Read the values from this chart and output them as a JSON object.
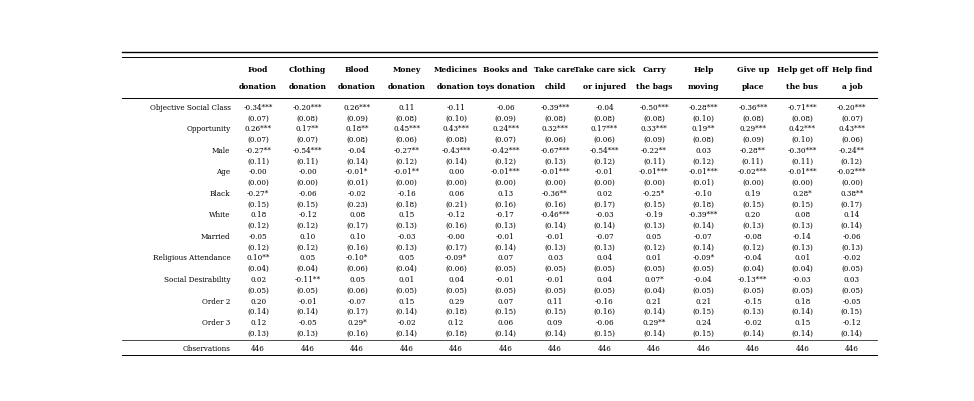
{
  "col_headers_line1": [
    "Food",
    "Clothing",
    "Blood",
    "Money",
    "Medicines",
    "Books and",
    "Take care",
    "Take care sick",
    "Carry",
    "Help",
    "Give up",
    "Help get off",
    "Help find"
  ],
  "col_headers_line2": [
    "donation",
    "donation",
    "donation",
    "donation",
    "donation",
    "toys donation",
    "child",
    "or injured",
    "the bags",
    "moving",
    "place",
    "the bus",
    "a job"
  ],
  "var_labels": [
    "Objective Social Class",
    "Opportunity",
    "Male",
    "Age",
    "Black",
    "White",
    "Married",
    "Religious Attendance",
    "Social Desirability",
    "Order 2",
    "Order 3"
  ],
  "data": [
    [
      "-0.34***",
      "-0.20***",
      "0.26***",
      "0.11",
      "-0.11",
      "-0.06",
      "-0.39***",
      "-0.04",
      "-0.50***",
      "-0.28***",
      "-0.36***",
      "-0.71***",
      "-0.20***"
    ],
    [
      "(0.07)",
      "(0.08)",
      "(0.09)",
      "(0.08)",
      "(0.10)",
      "(0.09)",
      "(0.08)",
      "(0.08)",
      "(0.08)",
      "(0.10)",
      "(0.08)",
      "(0.08)",
      "(0.07)"
    ],
    [
      "0.26***",
      "0.17**",
      "0.18**",
      "0.45***",
      "0.43***",
      "0.24***",
      "0.32***",
      "0.17***",
      "0.33***",
      "0.19**",
      "0.29***",
      "0.42***",
      "0.43***"
    ],
    [
      "(0.07)",
      "(0.07)",
      "(0.08)",
      "(0.06)",
      "(0.08)",
      "(0.07)",
      "(0.06)",
      "(0.06)",
      "(0.09)",
      "(0.08)",
      "(0.09)",
      "(0.10)",
      "(0.06)"
    ],
    [
      "-0.27**",
      "-0.54***",
      "-0.04",
      "-0.27**",
      "-0.43***",
      "-0.42***",
      "-0.67***",
      "-0.54***",
      "-0.22**",
      "0.03",
      "-0.28**",
      "-0.30***",
      "-0.24**"
    ],
    [
      "(0.11)",
      "(0.11)",
      "(0.14)",
      "(0.12)",
      "(0.14)",
      "(0.12)",
      "(0.13)",
      "(0.12)",
      "(0.11)",
      "(0.12)",
      "(0.11)",
      "(0.11)",
      "(0.12)"
    ],
    [
      "-0.00",
      "-0.00",
      "-0.01*",
      "-0.01**",
      "0.00",
      "-0.01***",
      "-0.01***",
      "-0.01",
      "-0.01***",
      "-0.01***",
      "-0.02***",
      "-0.01***",
      "-0.02***"
    ],
    [
      "(0.00)",
      "(0.00)",
      "(0.01)",
      "(0.00)",
      "(0.00)",
      "(0.00)",
      "(0.00)",
      "(0.00)",
      "(0.00)",
      "(0.01)",
      "(0.00)",
      "(0.00)",
      "(0.00)"
    ],
    [
      "-0.27*",
      "-0.06",
      "-0.02",
      "-0.16",
      "0.06",
      "0.13",
      "-0.36**",
      "0.02",
      "-0.25*",
      "-0.10",
      "0.19",
      "0.28*",
      "0.38**"
    ],
    [
      "(0.15)",
      "(0.15)",
      "(0.23)",
      "(0.18)",
      "(0.21)",
      "(0.16)",
      "(0.16)",
      "(0.17)",
      "(0.15)",
      "(0.18)",
      "(0.15)",
      "(0.15)",
      "(0.17)"
    ],
    [
      "0.18",
      "-0.12",
      "0.08",
      "0.15",
      "-0.12",
      "-0.17",
      "-0.46***",
      "-0.03",
      "-0.19",
      "-0.39***",
      "0.20",
      "0.08",
      "0.14"
    ],
    [
      "(0.12)",
      "(0.12)",
      "(0.17)",
      "(0.13)",
      "(0.16)",
      "(0.13)",
      "(0.14)",
      "(0.14)",
      "(0.13)",
      "(0.14)",
      "(0.13)",
      "(0.13)",
      "(0.14)"
    ],
    [
      "-0.05",
      "0.10",
      "0.10",
      "-0.03",
      "-0.00",
      "-0.01",
      "-0.01",
      "-0.07",
      "0.05",
      "-0.07",
      "-0.08",
      "-0.14",
      "-0.06"
    ],
    [
      "(0.12)",
      "(0.12)",
      "(0.16)",
      "(0.13)",
      "(0.17)",
      "(0.14)",
      "(0.13)",
      "(0.13)",
      "(0.12)",
      "(0.14)",
      "(0.12)",
      "(0.13)",
      "(0.13)"
    ],
    [
      "0.10**",
      "0.05",
      "-0.10*",
      "0.05",
      "-0.09*",
      "0.07",
      "0.03",
      "0.04",
      "0.01",
      "-0.09*",
      "-0.04",
      "0.01",
      "-0.02"
    ],
    [
      "(0.04)",
      "(0.04)",
      "(0.06)",
      "(0.04)",
      "(0.06)",
      "(0.05)",
      "(0.05)",
      "(0.05)",
      "(0.05)",
      "(0.05)",
      "(0.04)",
      "(0.04)",
      "(0.05)"
    ],
    [
      "0.02",
      "-0.11**",
      "0.05",
      "0.01",
      "0.04",
      "-0.01",
      "-0.01",
      "0.04",
      "0.07*",
      "-0.04",
      "-0.13***",
      "-0.03",
      "0.03"
    ],
    [
      "(0.05)",
      "(0.05)",
      "(0.06)",
      "(0.05)",
      "(0.05)",
      "(0.05)",
      "(0.05)",
      "(0.05)",
      "(0.04)",
      "(0.05)",
      "(0.05)",
      "(0.05)",
      "(0.05)"
    ],
    [
      "0.20",
      "-0.01",
      "-0.07",
      "0.15",
      "0.29",
      "0.07",
      "0.11",
      "-0.16",
      "0.21",
      "0.21",
      "-0.15",
      "0.18",
      "-0.05"
    ],
    [
      "(0.14)",
      "(0.14)",
      "(0.17)",
      "(0.14)",
      "(0.18)",
      "(0.15)",
      "(0.15)",
      "(0.16)",
      "(0.14)",
      "(0.15)",
      "(0.13)",
      "(0.14)",
      "(0.15)"
    ],
    [
      "0.12",
      "-0.05",
      "0.29*",
      "-0.02",
      "0.12",
      "0.06",
      "0.09",
      "-0.06",
      "0.29**",
      "0.24",
      "-0.02",
      "0.15",
      "-0.12"
    ],
    [
      "(0.13)",
      "(0.13)",
      "(0.16)",
      "(0.14)",
      "(0.18)",
      "(0.14)",
      "(0.14)",
      "(0.15)",
      "(0.14)",
      "(0.15)",
      "(0.14)",
      "(0.14)",
      "(0.14)"
    ],
    [
      "446",
      "446",
      "446",
      "446",
      "446",
      "446",
      "446",
      "446",
      "446",
      "446",
      "446",
      "446",
      "446"
    ]
  ],
  "background_color": "#ffffff",
  "text_color": "#000000",
  "data_fontsize": 5.2,
  "header_fontsize": 5.5,
  "label_fontsize": 5.2
}
